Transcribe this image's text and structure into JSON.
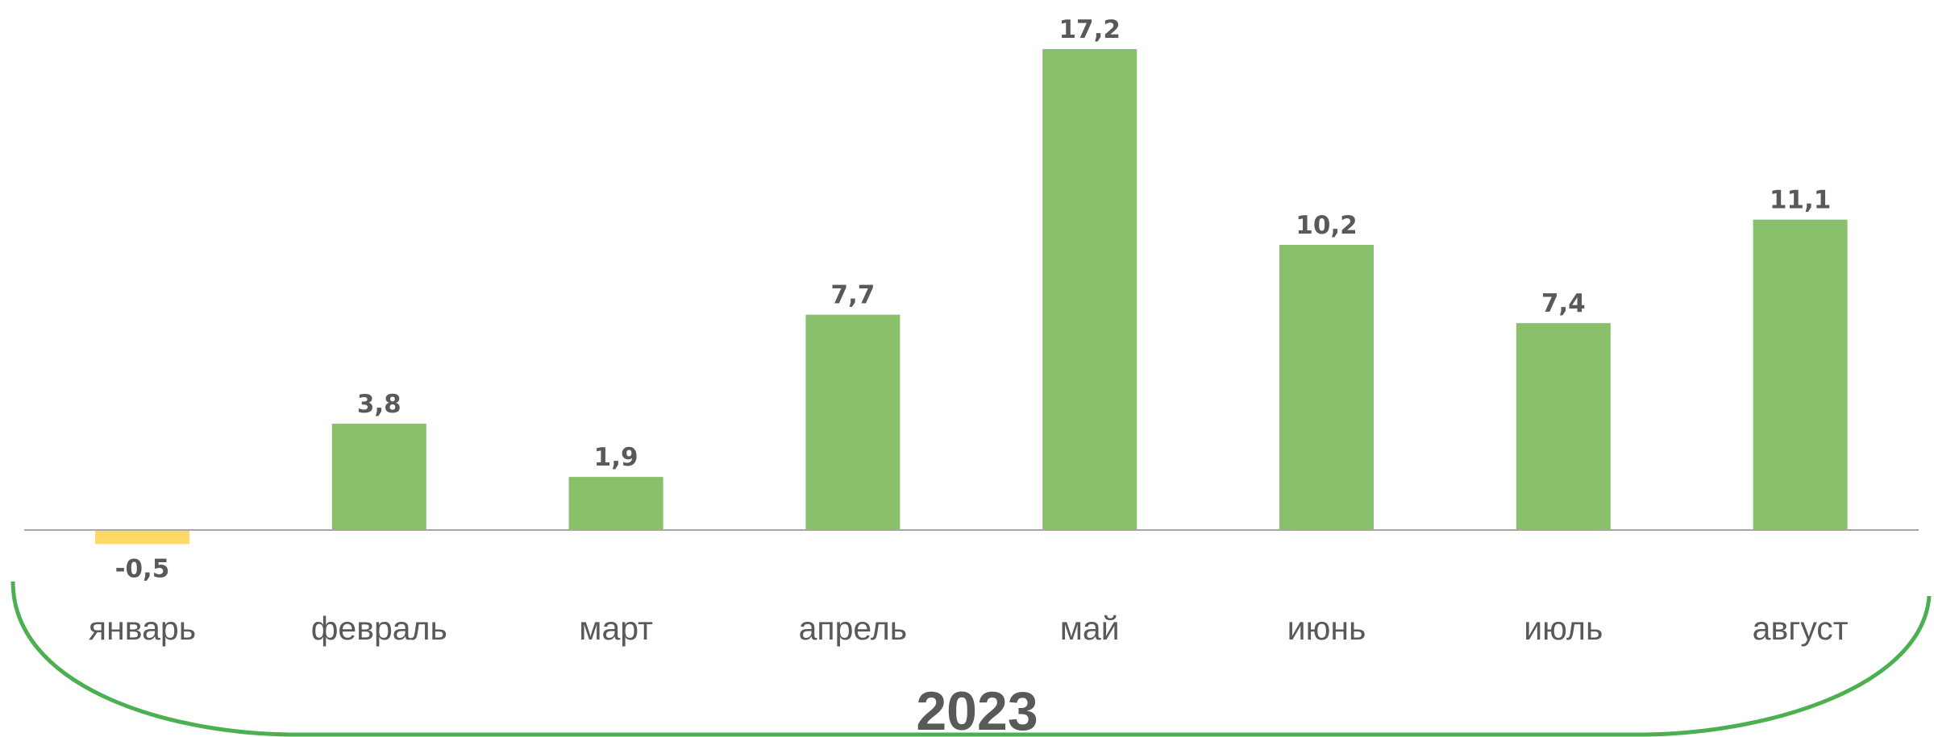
{
  "chart_data": {
    "type": "bar",
    "categories": [
      "январь",
      "февраль",
      "март",
      "апрель",
      "май",
      "июнь",
      "июль",
      "август"
    ],
    "values": [
      -0.5,
      3.8,
      1.9,
      7.7,
      17.2,
      10.2,
      7.4,
      11.1
    ],
    "value_labels": [
      "-0,5",
      "3,8",
      "1,9",
      "7,7",
      "17,2",
      "10,2",
      "7,4",
      "11,1"
    ],
    "group_label": "2023",
    "title": "",
    "xlabel": "",
    "ylabel": "",
    "grid": false,
    "legend": "none",
    "colors": {
      "positive": "#88c06b",
      "negative": "#ffd966",
      "baseline": "#a6a6a6",
      "bracket": "#4caf50",
      "text": "#595959"
    }
  }
}
